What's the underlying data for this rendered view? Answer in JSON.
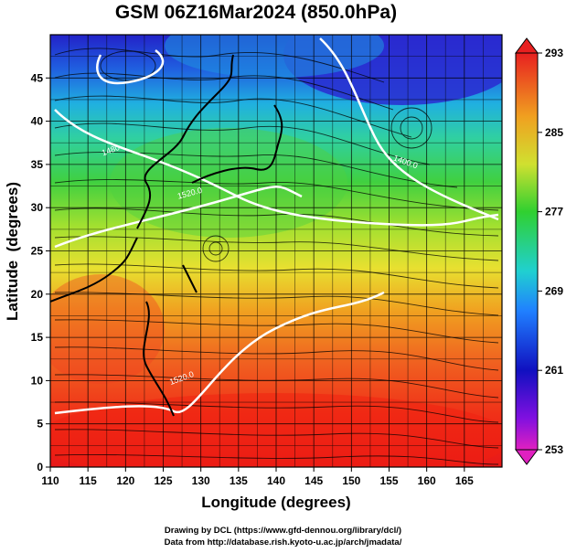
{
  "title": "GSM 06Z16Mar2024 (850.0hPa)",
  "xaxis": {
    "label": "Longitude (degrees)",
    "range": [
      110,
      170
    ],
    "ticks": [
      "110",
      "115",
      "120",
      "125",
      "130",
      "135",
      "140",
      "145",
      "150",
      "155",
      "160",
      "165"
    ]
  },
  "yaxis": {
    "label": "Latitude  (degrees)",
    "range": [
      0,
      50
    ],
    "ticks": [
      "0",
      "5",
      "10",
      "15",
      "20",
      "25",
      "30",
      "35",
      "40",
      "45"
    ]
  },
  "colorbar": {
    "range": [
      253,
      293
    ],
    "ticks": [
      "253",
      "261",
      "269",
      "277",
      "285",
      "293"
    ]
  },
  "contours": [
    {
      "label": "1400.0",
      "value": 1400
    },
    {
      "label": "1480",
      "value": 1480
    },
    {
      "label": "1520.0",
      "value": 1520
    },
    {
      "label": "1520.0",
      "value": 1520
    }
  ],
  "credits": {
    "line1": "Drawing by DCL (https://www.gfd-dennou.org/library/dcl/)",
    "line2": "Data from http://database.rish.kyoto-u.ac.jp/arch/jmadata/"
  },
  "colors": {
    "cold": "#3030c0",
    "warm": "#e81010",
    "mid": "#40c040"
  }
}
